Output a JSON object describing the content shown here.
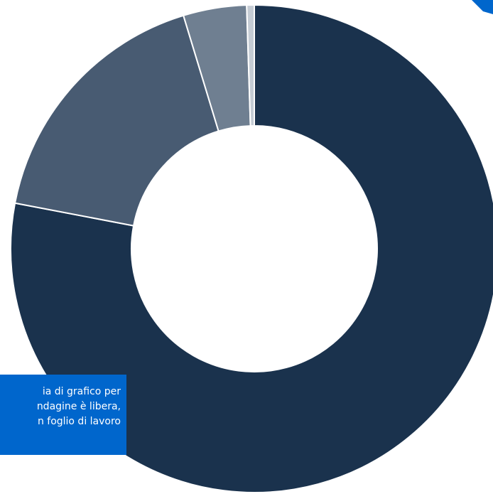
{
  "chart_data": {
    "type": "pie",
    "title": "",
    "categories": [
      "",
      "",
      "",
      ""
    ],
    "values": [
      78.0,
      17.3,
      4.2,
      0.5
    ],
    "colors": [
      "#1a324d",
      "#485b72",
      "#6f7f91",
      "#c5ccd4"
    ],
    "donut": true
  },
  "tooltip": {
    "lines": [
      "ia di grafico per",
      "ndagine è libera,",
      "n foglio di lavoro"
    ],
    "background": "#0066cc"
  },
  "accent": "#0066cc"
}
